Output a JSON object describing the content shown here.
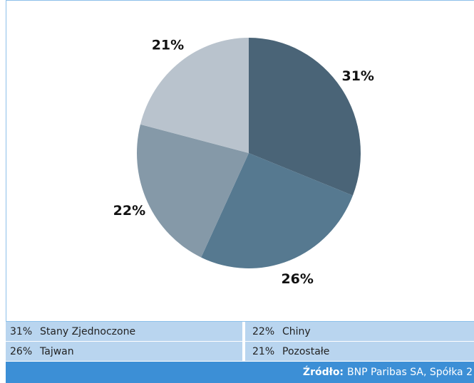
{
  "chart_data": {
    "type": "pie",
    "categories": [
      "Stany Zjednoczone",
      "Tajwan",
      "Chiny",
      "Pozostałe"
    ],
    "values": [
      31,
      26,
      22,
      21
    ],
    "value_labels": [
      "31%",
      "26%",
      "22%",
      "21%"
    ],
    "colors": [
      "#4a6477",
      "#567990",
      "#8599a8",
      "#b9c3cd"
    ],
    "legend_order": [
      0,
      2,
      1,
      3
    ]
  },
  "footer": {
    "label": "Źródło:",
    "text": "BNP Paribas SA, Spółka 2"
  }
}
